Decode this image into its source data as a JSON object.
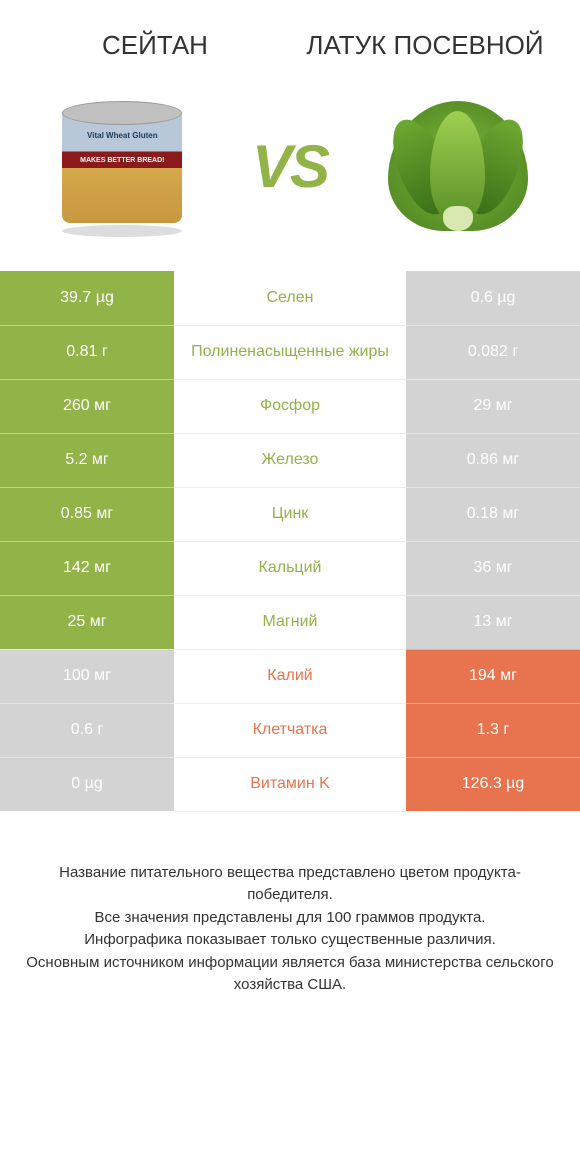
{
  "header": {
    "left_title": "СЕЙТАН",
    "right_title": "ЛАТУК ПОСЕВНОЙ",
    "vs": "VS",
    "can_label_main": "Vital Wheat Gluten",
    "can_label_sub": "MAKES BETTER BREAD!"
  },
  "colors": {
    "left_win": "#92b348",
    "right_win": "#e8744f",
    "left_lose": "#d3d3d3",
    "right_lose": "#d3d3d3",
    "mid_text_left": "#92b348",
    "mid_text_right": "#e8744f",
    "vs_color": "#92b348",
    "title_color": "#333333"
  },
  "rows": [
    {
      "nutrient": "Селен",
      "left": "39.7 µg",
      "right": "0.6 µg",
      "winner": "left"
    },
    {
      "nutrient": "Полиненасыщенные жиры",
      "left": "0.81 г",
      "right": "0.082 г",
      "winner": "left"
    },
    {
      "nutrient": "Фосфор",
      "left": "260 мг",
      "right": "29 мг",
      "winner": "left"
    },
    {
      "nutrient": "Железо",
      "left": "5.2 мг",
      "right": "0.86 мг",
      "winner": "left"
    },
    {
      "nutrient": "Цинк",
      "left": "0.85 мг",
      "right": "0.18 мг",
      "winner": "left"
    },
    {
      "nutrient": "Кальций",
      "left": "142 мг",
      "right": "36 мг",
      "winner": "left"
    },
    {
      "nutrient": "Магний",
      "left": "25 мг",
      "right": "13 мг",
      "winner": "left"
    },
    {
      "nutrient": "Калий",
      "left": "100 мг",
      "right": "194 мг",
      "winner": "right"
    },
    {
      "nutrient": "Клетчатка",
      "left": "0.6 г",
      "right": "1.3 г",
      "winner": "right"
    },
    {
      "nutrient": "Витамин K",
      "left": "0 µg",
      "right": "126.3 µg",
      "winner": "right"
    }
  ],
  "footnote": "Название питательного вещества представлено цветом продукта-победителя.\nВсе значения представлены для 100 граммов продукта.\nИнфографика показывает только существенные различия.\nОсновным источником информации является база министерства сельского хозяйства США."
}
